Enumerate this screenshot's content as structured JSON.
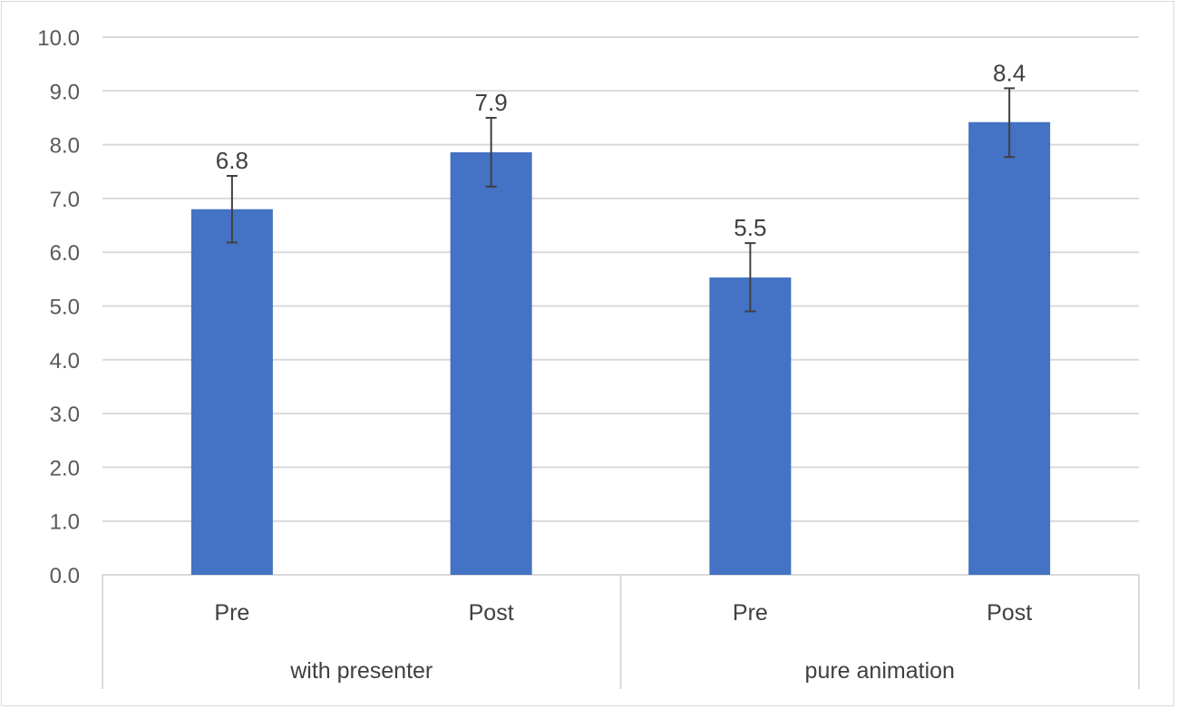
{
  "chart_data": {
    "type": "bar",
    "title": "",
    "xlabel": "",
    "ylabel": "",
    "ylim": [
      0,
      10
    ],
    "y_ticks": [
      "0.0",
      "1.0",
      "2.0",
      "3.0",
      "4.0",
      "5.0",
      "6.0",
      "7.0",
      "8.0",
      "9.0",
      "10.0"
    ],
    "grid": true,
    "groups": [
      {
        "label": "with presenter",
        "categories": [
          "Pre",
          "Post"
        ]
      },
      {
        "label": "pure animation",
        "categories": [
          "Pre",
          "Post"
        ]
      }
    ],
    "categories": [
      "Pre",
      "Post",
      "Pre",
      "Post"
    ],
    "values": [
      6.8,
      7.86,
      5.53,
      8.42
    ],
    "data_labels": [
      "6.8",
      "7.9",
      "5.5",
      "8.4"
    ],
    "error_bars": [
      {
        "low": 6.18,
        "high": 7.42
      },
      {
        "low": 7.22,
        "high": 8.5
      },
      {
        "low": 4.9,
        "high": 6.17
      },
      {
        "low": 7.77,
        "high": 9.05
      }
    ],
    "bar_color": "#4472c4",
    "error_bar_color": "#404040"
  }
}
